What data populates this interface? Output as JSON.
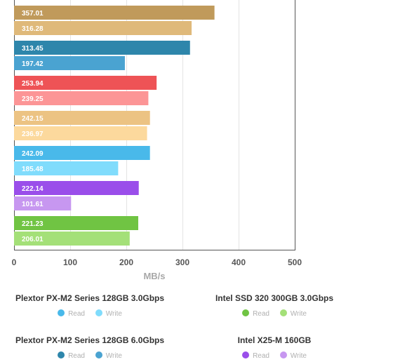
{
  "chart_data": {
    "type": "bar",
    "orientation": "horizontal",
    "xlabel": "MB/s",
    "xlim": [
      0,
      500
    ],
    "xticks": [
      0,
      100,
      200,
      300,
      400,
      500
    ],
    "grid": true,
    "groups": [
      {
        "read": 357.01,
        "write": 316.28,
        "read_color": "#c09a5b",
        "write_color": "#dfb97a"
      },
      {
        "read": 313.45,
        "write": 197.42,
        "read_color": "#2e86ab",
        "write_color": "#4aa3d1"
      },
      {
        "read": 253.94,
        "write": 239.25,
        "read_color": "#ee5356",
        "write_color": "#fc9596"
      },
      {
        "read": 242.15,
        "write": 236.97,
        "read_color": "#ecc383",
        "write_color": "#fcd99d"
      },
      {
        "read": 242.09,
        "write": 185.48,
        "read_color": "#49b9ea",
        "write_color": "#80dcfc"
      },
      {
        "read": 222.14,
        "write": 101.61,
        "read_color": "#9a4eea",
        "write_color": "#c797f0"
      },
      {
        "read": 221.23,
        "write": 206.01,
        "read_color": "#70c443",
        "write_color": "#a4e078"
      }
    ]
  },
  "legend": [
    {
      "name": "Plextor PX-M2 Series 128GB 3.0Gbps",
      "read_label": "Read",
      "write_label": "Write",
      "read_color": "#49b9ea",
      "write_color": "#80dcfc"
    },
    {
      "name": "Intel SSD 320 300GB 3.0Gbps",
      "read_label": "Read",
      "write_label": "Write",
      "read_color": "#70c443",
      "write_color": "#a4e078"
    },
    {
      "name": "Plextor PX-M2 Series 128GB 6.0Gbps",
      "read_label": "Read",
      "write_label": "Write",
      "read_color": "#2e86ab",
      "write_color": "#4aa3d1"
    },
    {
      "name": "Intel X25-M 160GB",
      "read_label": "Read",
      "write_label": "Write",
      "read_color": "#9a4eea",
      "write_color": "#c797f0"
    }
  ]
}
